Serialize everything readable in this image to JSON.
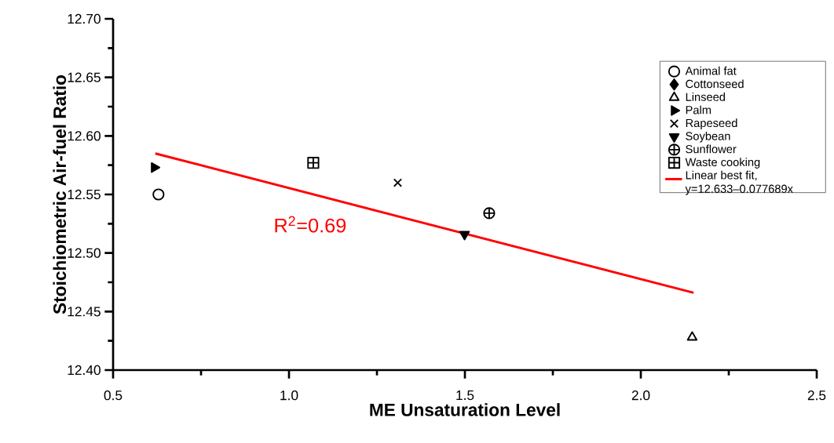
{
  "chart_data": {
    "type": "scatter",
    "xlabel": "ME Unsaturation Level",
    "ylabel": "Stoichiometric Air-fuel Ratio",
    "xlim": [
      0.5,
      2.5
    ],
    "ylim": [
      12.4,
      12.7
    ],
    "xticks": [
      0.5,
      {
        "value": 0.75,
        "label": null
      },
      {
        "value": 1.0,
        "label": "1.0"
      },
      {
        "value": 1.25,
        "label": null
      },
      1.5,
      {
        "value": 1.75,
        "label": null
      },
      {
        "value": 2.0,
        "label": "2.0"
      },
      {
        "value": 2.25,
        "label": null
      },
      2.5
    ],
    "yticks": [
      {
        "value": 12.4,
        "label": "12.40"
      },
      {
        "value": 12.425,
        "label": null
      },
      12.45,
      {
        "value": 12.475,
        "label": null
      },
      {
        "value": 12.5,
        "label": "12.50"
      },
      {
        "value": 12.525,
        "label": null
      },
      12.55,
      {
        "value": 12.575,
        "label": null
      },
      {
        "value": 12.6,
        "label": "12.60"
      },
      {
        "value": 12.625,
        "label": null
      },
      12.65,
      {
        "value": 12.675,
        "label": null
      },
      {
        "value": 12.7,
        "label": "12.70"
      }
    ],
    "legend": "right",
    "annotations": [
      "R$^{2}$=0.69"
    ],
    "series": [
      {
        "name": "Animal fat",
        "color": "#000000",
        "marker": "circle",
        "x": [
          0.629
        ],
        "values": [
          12.55
        ]
      },
      {
        "name": "Cottonseed",
        "color": "#000000",
        "marker": "diamond",
        "values": [
          null
        ]
      },
      {
        "name": "Linseed",
        "color": "#000000",
        "marker": "triangle",
        "x": [
          2.146
        ],
        "values": [
          12.428
        ]
      },
      {
        "name": "Palm",
        "color": "#000000",
        "marker": "triangle-right",
        "x": [
          0.617
        ],
        "values": [
          12.573
        ]
      },
      {
        "name": "Rapeseed",
        "color": "#000000",
        "marker": "cross",
        "x": [
          1.309
        ],
        "values": [
          12.56
        ]
      },
      {
        "name": "Soybean",
        "color": "#000000",
        "marker": "triangle-down",
        "x": [
          1.499
        ],
        "values": [
          12.516
        ]
      },
      {
        "name": "Sunflower",
        "color": "#000000",
        "x": [
          1.569
        ],
        "values": [
          12.534
        ]
      },
      {
        "name": "Waste cooking",
        "color": "#000000",
        "x": [
          1.069
        ],
        "values": [
          12.577
        ]
      },
      {
        "name": "Linear best fit, y=12.633–0.077689x",
        "type": "line",
        "color": "#ff0000",
        "marker": "none",
        "line_style": "solid",
        "x": [
          0.62,
          2.15
        ],
        "values": [
          12.585,
          12.466
        ]
      }
    ]
  }
}
